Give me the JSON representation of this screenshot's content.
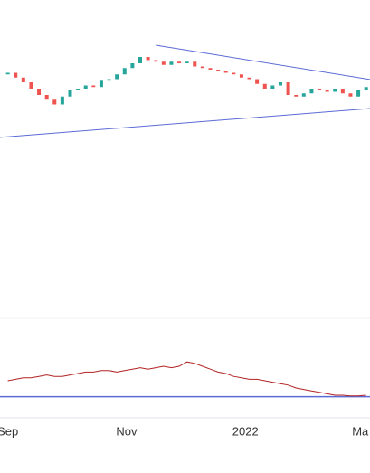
{
  "chart_data": {
    "type": "candlestick",
    "xlim": [
      -4,
      186
    ],
    "xticks": [
      {
        "value": 0,
        "label": "Sep"
      },
      {
        "value": 61,
        "label": "Nov"
      },
      {
        "value": 122,
        "label": "2022"
      },
      {
        "value": 181,
        "label": "Ma"
      }
    ],
    "ylim": [
      0,
      100
    ],
    "x": [
      0,
      4,
      8,
      12,
      16,
      20,
      24,
      28,
      32,
      36,
      40,
      44,
      48,
      52,
      56,
      60,
      64,
      68,
      72,
      76,
      80,
      84,
      88,
      92,
      96,
      100,
      104,
      108,
      112,
      116,
      120,
      124,
      128,
      132,
      136,
      140,
      144,
      148,
      152,
      156,
      160,
      164,
      168,
      172,
      176,
      180,
      184
    ],
    "open": [
      76.5,
      77.0,
      75.5,
      74.0,
      72.0,
      70.0,
      68.5,
      67.0,
      69.5,
      71.5,
      72.0,
      73.0,
      72.5,
      74.5,
      75.0,
      76.5,
      78.5,
      80.0,
      82.0,
      81.0,
      80.5,
      79.5,
      80.5,
      80.0,
      80.5,
      79.0,
      78.5,
      78.0,
      77.5,
      77.0,
      76.5,
      75.5,
      75.0,
      73.5,
      72.0,
      73.0,
      74.0,
      70.0,
      69.5,
      70.5,
      72.0,
      71.5,
      71.0,
      72.0,
      70.5,
      69.5,
      71.5
    ],
    "close": [
      77.0,
      75.5,
      74.0,
      72.0,
      70.0,
      68.5,
      67.0,
      69.5,
      71.5,
      72.0,
      73.0,
      72.5,
      74.5,
      75.0,
      76.5,
      78.5,
      80.0,
      82.0,
      81.0,
      80.5,
      79.5,
      80.5,
      80.0,
      80.5,
      79.0,
      78.5,
      78.0,
      77.5,
      77.0,
      76.5,
      75.5,
      75.0,
      73.5,
      72.0,
      73.0,
      74.0,
      70.0,
      69.5,
      70.5,
      72.0,
      71.5,
      71.0,
      72.0,
      70.5,
      69.5,
      71.5,
      72.5
    ],
    "up_color": "#26a69a",
    "down_color": "#ef5350",
    "trendlines": [
      {
        "x": [
          76,
          186
        ],
        "values": [
          85.7,
          74.9
        ],
        "color": "#5b6bd6"
      },
      {
        "x": [
          -4,
          186
        ],
        "values": [
          56.6,
          65.7
        ],
        "color": "#5b6bd6"
      }
    ],
    "indicator": {
      "ylim": [
        0,
        50
      ],
      "color": "#b22222",
      "values": [
        15,
        16,
        17,
        17,
        18,
        19,
        18,
        18,
        19,
        20,
        21,
        21,
        22,
        22,
        21,
        22,
        23,
        24,
        23,
        24,
        25,
        24,
        25,
        28,
        27,
        25,
        23,
        21,
        20,
        18,
        17,
        16,
        16,
        15,
        14,
        13,
        12,
        10,
        9,
        8,
        7,
        6,
        5,
        5,
        4.5,
        4.5,
        5
      ],
      "baseline": 4,
      "baseline_color": "#5b6bd6"
    }
  }
}
